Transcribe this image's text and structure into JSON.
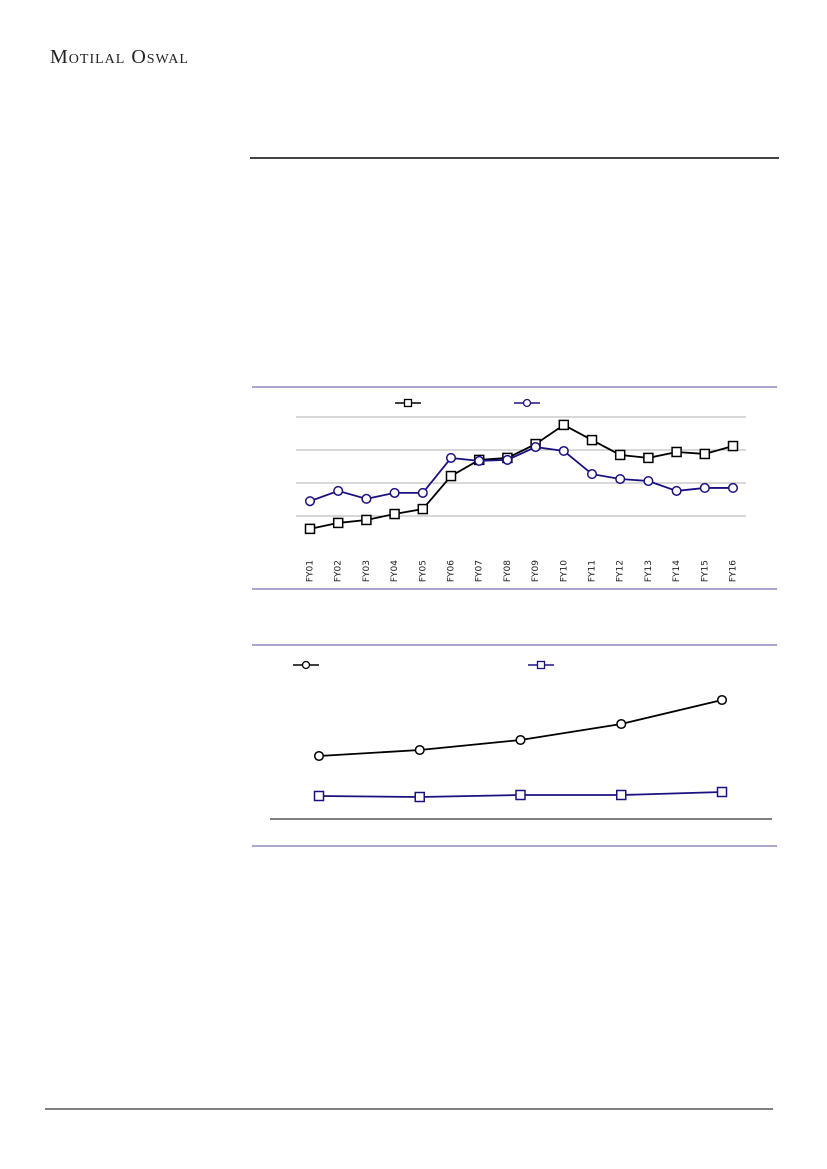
{
  "header": {
    "brand": "Motilal Oswal"
  },
  "chart_data": [
    {
      "type": "line",
      "categories": [
        "FY01",
        "FY02",
        "FY03",
        "FY04",
        "FY05",
        "FY06",
        "FY07",
        "FY08",
        "FY09",
        "FY10",
        "FY11",
        "FY12",
        "FY13",
        "FY14",
        "FY15",
        "FY16"
      ],
      "ylim": [
        0,
        4
      ],
      "yticks": [
        1,
        2,
        3,
        4
      ],
      "grid": true,
      "series": [
        {
          "color": "#000000",
          "marker": "square",
          "values": [
            0.61,
            0.79,
            0.88,
            1.06,
            1.21,
            2.21,
            2.7,
            2.76,
            3.18,
            3.76,
            3.3,
            2.85,
            2.76,
            2.94,
            2.88,
            3.12
          ]
        },
        {
          "color": "#1a1080",
          "marker": "circle",
          "values": [
            1.45,
            1.76,
            1.52,
            1.7,
            1.7,
            2.76,
            2.67,
            2.7,
            3.09,
            2.97,
            2.27,
            2.12,
            2.06,
            1.76,
            1.85,
            1.85
          ]
        }
      ]
    },
    {
      "type": "line",
      "categories": [
        null,
        null,
        null,
        null,
        null
      ],
      "ylim": [
        0,
        13
      ],
      "grid": false,
      "series": [
        {
          "color": "#000000",
          "marker": "circle",
          "values": [
            6.3,
            6.9,
            7.9,
            9.5,
            11.9
          ]
        },
        {
          "color": "#1a1080",
          "marker": "square",
          "values": [
            2.3,
            2.2,
            2.4,
            2.4,
            2.7
          ]
        }
      ]
    }
  ]
}
